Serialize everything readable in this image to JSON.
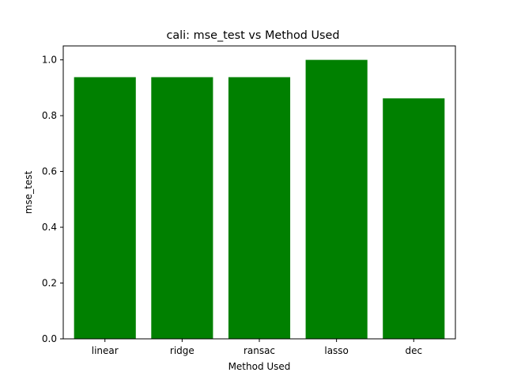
{
  "chart_data": {
    "type": "bar",
    "title": "cali: mse_test vs Method Used",
    "xlabel": "Method Used",
    "ylabel": "mse_test",
    "categories": [
      "linear",
      "ridge",
      "ransac",
      "lasso",
      "dec"
    ],
    "values": [
      0.938,
      0.938,
      0.938,
      1.0,
      0.862
    ],
    "ylim": [
      0,
      1.05
    ],
    "yticks": [
      0.0,
      0.2,
      0.4,
      0.6,
      0.8,
      1.0
    ],
    "ytick_labels": [
      "0.0",
      "0.2",
      "0.4",
      "0.6",
      "0.8",
      "1.0"
    ],
    "bar_color": "#008000",
    "grid": false,
    "legend": "none"
  }
}
